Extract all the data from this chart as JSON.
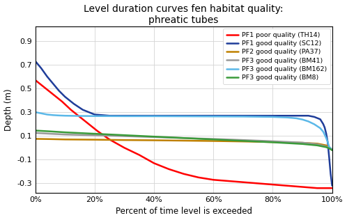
{
  "title": "Level duration curves fen habitat quality:\nphreatic tubes",
  "xlabel": "Percent of time level is exceeded",
  "ylabel": "Depth (m)",
  "xlim": [
    0,
    1.0
  ],
  "ylim": [
    -0.38,
    1.02
  ],
  "yticks": [
    -0.3,
    -0.1,
    0.1,
    0.3,
    0.5,
    0.7,
    0.9
  ],
  "yticklabels": [
    "-0.3",
    "-0.1",
    "0.1",
    "0.3",
    "0.5",
    "0.7",
    "0.9"
  ],
  "xticks": [
    0,
    0.2,
    0.4,
    0.6,
    0.8,
    1.0
  ],
  "xticklabels": [
    "0%",
    "20%",
    "40%",
    "60%",
    "80%",
    "100%"
  ],
  "bg_color": "#FFFFFF",
  "series": [
    {
      "label": "PF1 poor quality (TH14)",
      "color": "#FF0000",
      "linewidth": 1.8,
      "x": [
        0,
        0.03,
        0.06,
        0.09,
        0.12,
        0.15,
        0.18,
        0.21,
        0.25,
        0.3,
        0.35,
        0.4,
        0.45,
        0.5,
        0.55,
        0.6,
        0.65,
        0.7,
        0.75,
        0.8,
        0.85,
        0.9,
        0.95,
        1.0
      ],
      "y": [
        0.57,
        0.51,
        0.45,
        0.39,
        0.32,
        0.26,
        0.2,
        0.14,
        0.07,
        0.0,
        -0.06,
        -0.13,
        -0.18,
        -0.22,
        -0.25,
        -0.27,
        -0.28,
        -0.29,
        -0.3,
        -0.31,
        -0.32,
        -0.33,
        -0.34,
        -0.34
      ]
    },
    {
      "label": "PF1 good quality (SC12)",
      "color": "#1F3D99",
      "linewidth": 1.8,
      "x": [
        0,
        0.02,
        0.04,
        0.06,
        0.08,
        0.1,
        0.13,
        0.16,
        0.2,
        0.25,
        0.3,
        0.4,
        0.5,
        0.6,
        0.7,
        0.8,
        0.88,
        0.92,
        0.94,
        0.96,
        0.97,
        0.975,
        0.98,
        0.985,
        0.99,
        0.995,
        1.0
      ],
      "y": [
        0.73,
        0.67,
        0.6,
        0.54,
        0.48,
        0.43,
        0.37,
        0.32,
        0.28,
        0.27,
        0.27,
        0.27,
        0.27,
        0.27,
        0.27,
        0.27,
        0.27,
        0.27,
        0.26,
        0.24,
        0.2,
        0.17,
        0.12,
        0.05,
        -0.08,
        -0.22,
        -0.32
      ]
    },
    {
      "label": "PF2 good quality (PA37)",
      "color": "#BF8000",
      "linewidth": 1.8,
      "x": [
        0,
        0.05,
        0.1,
        0.2,
        0.3,
        0.4,
        0.5,
        0.6,
        0.7,
        0.8,
        0.9,
        0.95,
        0.98,
        0.99,
        1.0
      ],
      "y": [
        0.075,
        0.073,
        0.07,
        0.068,
        0.065,
        0.063,
        0.06,
        0.057,
        0.053,
        0.048,
        0.042,
        0.035,
        0.02,
        0.005,
        -0.02
      ]
    },
    {
      "label": "PF3 good quality (BM41)",
      "color": "#999999",
      "linewidth": 1.8,
      "x": [
        0,
        0.05,
        0.1,
        0.2,
        0.3,
        0.4,
        0.5,
        0.6,
        0.7,
        0.8,
        0.9,
        0.95,
        0.98,
        1.0
      ],
      "y": [
        0.125,
        0.118,
        0.112,
        0.105,
        0.098,
        0.09,
        0.082,
        0.074,
        0.065,
        0.055,
        0.043,
        0.03,
        0.01,
        -0.01
      ]
    },
    {
      "label": "PF3 good quality (BM162)",
      "color": "#5BB8E8",
      "linewidth": 1.8,
      "x": [
        0,
        0.02,
        0.04,
        0.06,
        0.08,
        0.1,
        0.15,
        0.2,
        0.3,
        0.4,
        0.5,
        0.6,
        0.7,
        0.8,
        0.85,
        0.88,
        0.9,
        0.92,
        0.94,
        0.96,
        0.97,
        0.975,
        0.98,
        0.985,
        0.99,
        1.0
      ],
      "y": [
        0.3,
        0.29,
        0.28,
        0.275,
        0.272,
        0.27,
        0.268,
        0.267,
        0.266,
        0.266,
        0.265,
        0.264,
        0.263,
        0.26,
        0.255,
        0.248,
        0.238,
        0.222,
        0.198,
        0.165,
        0.135,
        0.11,
        0.082,
        0.05,
        0.008,
        -0.02
      ]
    },
    {
      "label": "PF3 good quality (BM8)",
      "color": "#3A9B3A",
      "linewidth": 1.8,
      "x": [
        0,
        0.05,
        0.1,
        0.2,
        0.3,
        0.4,
        0.5,
        0.6,
        0.7,
        0.8,
        0.9,
        0.95,
        0.98,
        0.99,
        1.0
      ],
      "y": [
        0.145,
        0.138,
        0.13,
        0.118,
        0.106,
        0.094,
        0.082,
        0.07,
        0.058,
        0.046,
        0.032,
        0.02,
        0.005,
        -0.005,
        -0.02
      ]
    }
  ]
}
